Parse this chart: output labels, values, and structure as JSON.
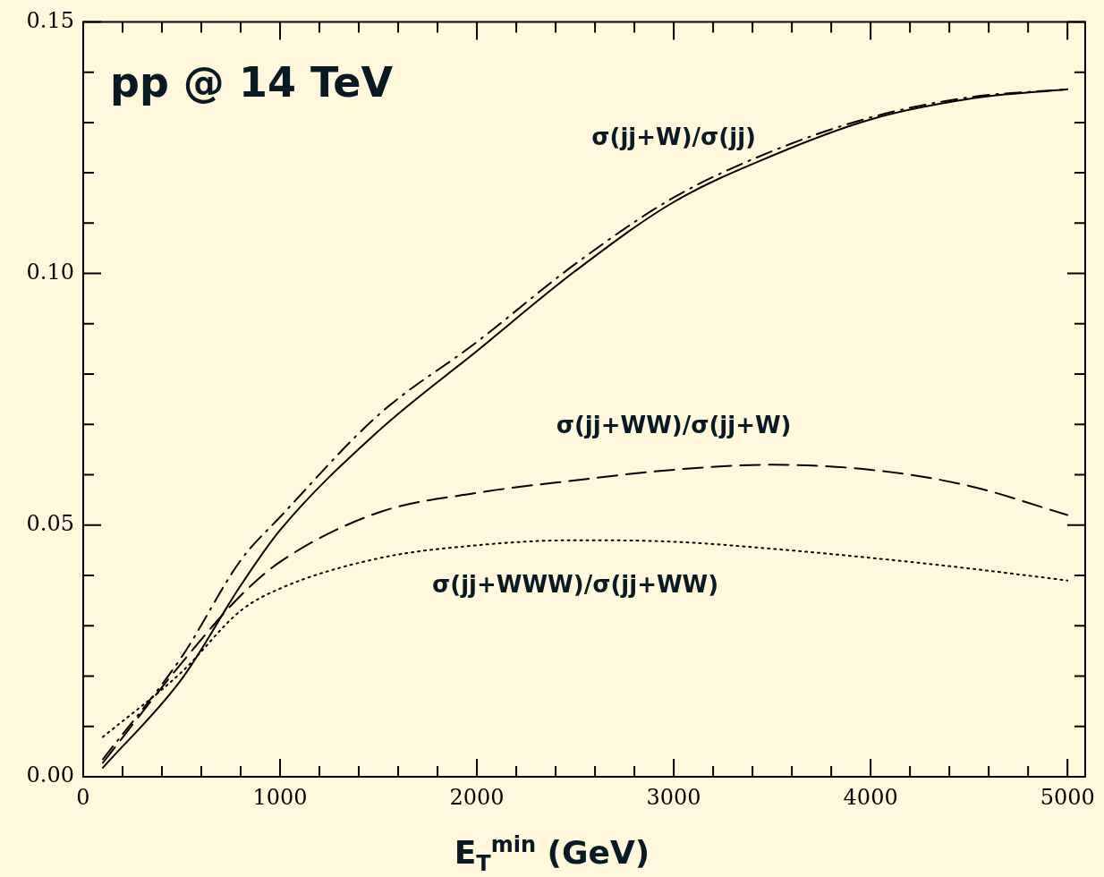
{
  "chart_data": {
    "type": "line",
    "title": "pp @ 14 TeV",
    "xlabel": "E$_{T}$$^{min}$ (GeV)",
    "xlim": [
      0,
      5090
    ],
    "ylim": [
      0,
      0.15
    ],
    "xticks": [
      {
        "value": 0,
        "label": "0"
      },
      {
        "value": 200,
        "label": null
      },
      {
        "value": 400,
        "label": null
      },
      {
        "value": 600,
        "label": null
      },
      {
        "value": 800,
        "label": null
      },
      {
        "value": 1000,
        "label": "1000"
      },
      {
        "value": 1200,
        "label": null
      },
      {
        "value": 1400,
        "label": null
      },
      {
        "value": 1600,
        "label": null
      },
      {
        "value": 1800,
        "label": null
      },
      {
        "value": 2000,
        "label": "2000"
      },
      {
        "value": 2200,
        "label": null
      },
      {
        "value": 2400,
        "label": null
      },
      {
        "value": 2600,
        "label": null
      },
      {
        "value": 2800,
        "label": null
      },
      {
        "value": 3000,
        "label": "3000"
      },
      {
        "value": 3200,
        "label": null
      },
      {
        "value": 3400,
        "label": null
      },
      {
        "value": 3600,
        "label": null
      },
      {
        "value": 3800,
        "label": null
      },
      {
        "value": 4000,
        "label": "4000"
      },
      {
        "value": 4200,
        "label": null
      },
      {
        "value": 4400,
        "label": null
      },
      {
        "value": 4600,
        "label": null
      },
      {
        "value": 4800,
        "label": null
      },
      {
        "value": 5000,
        "label": "5000"
      }
    ],
    "yticks": [
      {
        "value": 0,
        "label": "0.00"
      },
      {
        "value": 0.01,
        "label": null
      },
      {
        "value": 0.02,
        "label": null
      },
      {
        "value": 0.03,
        "label": null
      },
      {
        "value": 0.04,
        "label": null
      },
      {
        "value": 0.05,
        "label": "0.05"
      },
      {
        "value": 0.06,
        "label": null
      },
      {
        "value": 0.07,
        "label": null
      },
      {
        "value": 0.08,
        "label": null
      },
      {
        "value": 0.09,
        "label": null
      },
      {
        "value": 0.1,
        "label": "0.10"
      },
      {
        "value": 0.11,
        "label": null
      },
      {
        "value": 0.12,
        "label": null
      },
      {
        "value": 0.13,
        "label": null
      },
      {
        "value": 0.14,
        "label": null
      },
      {
        "value": 0.15,
        "label": "0.15"
      }
    ],
    "x": [
      100,
      500,
      800,
      1000,
      1500,
      2000,
      2500,
      3000,
      3500,
      4000,
      4500,
      5000
    ],
    "series": [
      {
        "name": "σ(jj+W)/σ(jj)",
        "color": "#000000",
        "line_style": "solid",
        "values": [
          0.0018,
          0.0194,
          0.038,
          0.049,
          0.0687,
          0.0846,
          0.1005,
          0.1142,
          0.1234,
          0.1306,
          0.1347,
          0.1366
        ]
      },
      {
        "color": "#000000",
        "line_style": "dashdot",
        "values": [
          0.0035,
          0.0238,
          0.043,
          0.0516,
          0.0719,
          0.0864,
          0.1019,
          0.1151,
          0.1243,
          0.131,
          0.135,
          0.1366
        ]
      },
      {
        "name": "σ(jj+WW)/σ(jj+W)",
        "color": "#000000",
        "line_style": "dashed",
        "values": [
          0.0028,
          0.0226,
          0.036,
          0.0427,
          0.0525,
          0.0564,
          0.0589,
          0.061,
          0.062,
          0.061,
          0.0578,
          0.052
        ]
      },
      {
        "name": "σ(jj+WWW)/σ(jj+WW)",
        "color": "#000000",
        "line_style": "dotted",
        "values": [
          0.0079,
          0.0208,
          0.033,
          0.0374,
          0.0434,
          0.046,
          0.047,
          0.0467,
          0.0453,
          0.0435,
          0.0414,
          0.039
        ]
      }
    ],
    "marker": "none",
    "grid": false,
    "legend": false
  }
}
